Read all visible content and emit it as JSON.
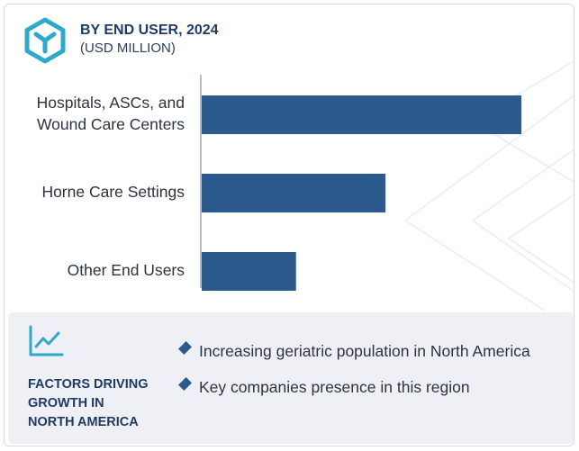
{
  "header": {
    "title": "BY END USER, 2024",
    "subtitle": "(USD MILLION)",
    "logo_icon": "hexagon-y-logo-icon",
    "logo_color": "#2fa8c9"
  },
  "chart_data": {
    "type": "bar",
    "orientation": "horizontal",
    "title": "BY END USER, 2024",
    "subtitle": "(USD MILLION)",
    "categories": [
      [
        "Hospitals, ASCs, and",
        "Wound Care Centers"
      ],
      [
        "Horne Care Settings"
      ],
      [
        "Other End Users"
      ]
    ],
    "values": [
      100,
      57.5,
      29.5
    ],
    "xlim": [
      0,
      100
    ],
    "xlabel": "",
    "ylabel": "",
    "grid": false,
    "bar_color": "#2c5a8c",
    "axis_color": "#b8bec8"
  },
  "factors": {
    "icon": "trend-line-icon",
    "title_lines": [
      "FACTORS DRIVING",
      "GROWTH IN",
      "NORTH AMERICA"
    ],
    "items": [
      "Increasing geriatric population in North America",
      "Key companies presence in this region"
    ],
    "accent": "#2fa8c9",
    "bullet_color": "#2c5a8c"
  }
}
